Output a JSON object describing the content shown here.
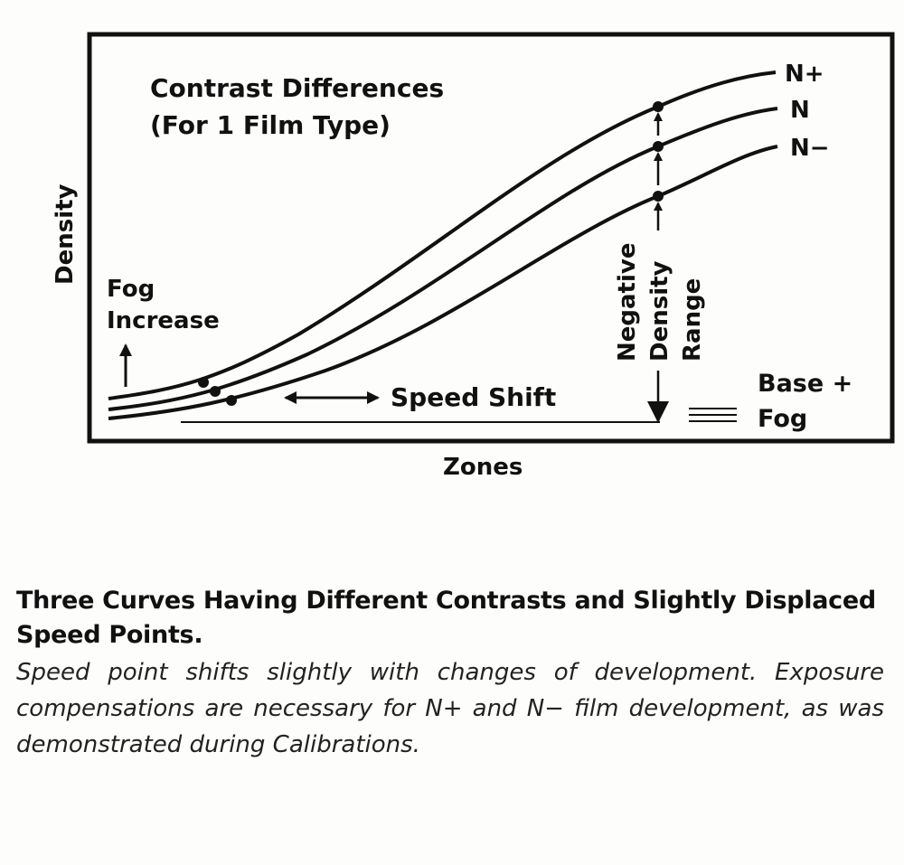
{
  "diagram": {
    "title_line1": "Contrast Differences",
    "title_line2": "(For 1 Film Type)",
    "y_axis_label": "Density",
    "x_axis_label": "Zones",
    "curves": [
      "N+",
      "N",
      "N−"
    ],
    "fog_increase_line1": "Fog",
    "fog_increase_line2": "Increase",
    "speed_shift": "Speed Shift",
    "range_line1": "Negative",
    "range_line2": "Density",
    "range_line3": "Range",
    "base_fog_line1": "Base +",
    "base_fog_line2": "Fog"
  },
  "caption": {
    "title": "Three Curves Having Different Contrasts and Slightly Displaced Speed Points.",
    "body": "Speed point shifts slightly with changes of development. Exposure compensations are necessary for N+ and N− film development, as was demonstrated during Calibrations."
  }
}
